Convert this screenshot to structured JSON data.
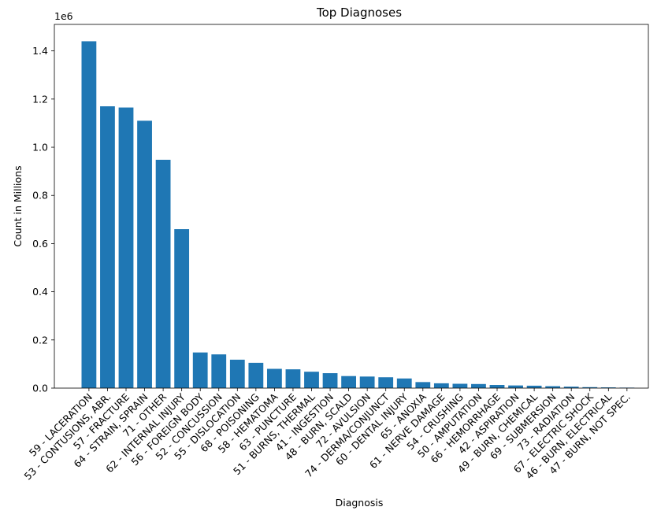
{
  "chart_data": {
    "type": "bar",
    "title": "Top Diagnoses",
    "xlabel": "Diagnosis",
    "ylabel": "Count in Millions",
    "y_offset_label": "1e6",
    "ylim": [
      0,
      1.51
    ],
    "y_ticks": [
      "0.0",
      "0.2",
      "0.4",
      "0.6",
      "0.8",
      "1.0",
      "1.2",
      "1.4"
    ],
    "grid": false,
    "bar_color": "#1f77b4",
    "categories": [
      "59 - LACERATION",
      "53 - CONTUSIONS, ABR.",
      "57 - FRACTURE",
      "64 - STRAIN, SPRAIN",
      "71 - OTHER",
      "62 - INTERNAL INJURY",
      "56 - FOREIGN BODY",
      "52 - CONCUSSION",
      "55 - DISLOCATION",
      "68 - POISONING",
      "58 - HEMATOMA",
      "63 - PUNCTURE",
      "51 - BURNS, THERMAL",
      "41 - INGESTION",
      "48 - BURN, SCALD",
      "72 - AVULSION",
      "74 - DERMA/CONJUNCT",
      "60 - DENTAL INJURY",
      "65 - ANOXIA",
      "61 - NERVE DAMAGE",
      "54 - CRUSHING",
      "50 - AMPUTATION",
      "66 - HEMORRHAGE",
      "42 - ASPIRATION",
      "49 - BURN, CHEMICAL",
      "69 - SUBMERSION",
      "73 - RADIATION",
      "67 - ELECTRIC SHOCK",
      "46 - BURN, ELECTRICAL",
      "47 - BURN, NOT SPEC."
    ],
    "values": [
      1.44,
      1.17,
      1.165,
      1.11,
      0.948,
      0.66,
      0.148,
      0.14,
      0.118,
      0.105,
      0.08,
      0.078,
      0.068,
      0.062,
      0.05,
      0.048,
      0.045,
      0.04,
      0.025,
      0.02,
      0.018,
      0.017,
      0.013,
      0.011,
      0.01,
      0.008,
      0.006,
      0.004,
      0.003,
      0.002
    ]
  }
}
